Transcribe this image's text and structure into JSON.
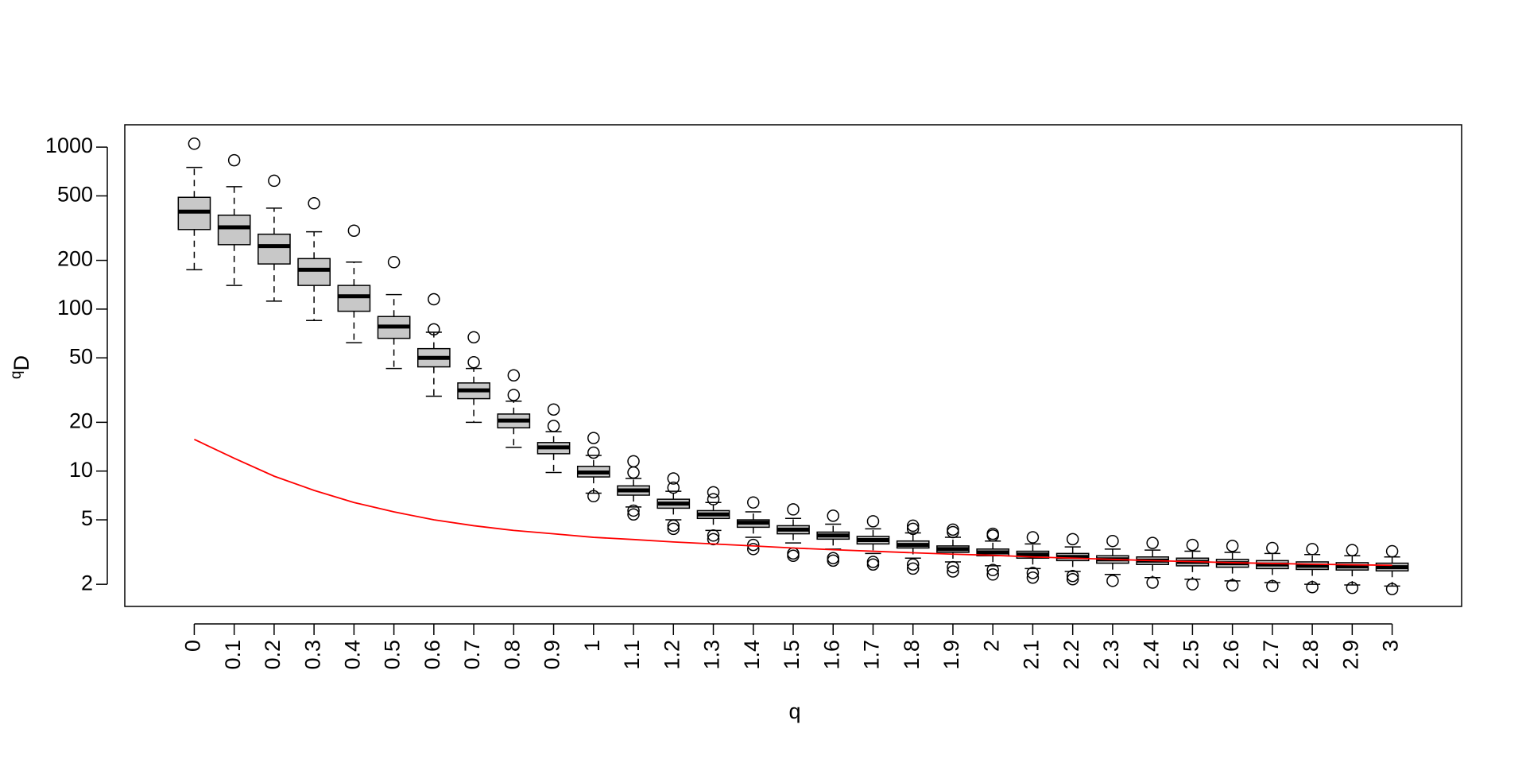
{
  "chart_data": {
    "type": "boxplot",
    "x_label": "q",
    "y_label": "D",
    "y_label_superscript": "q",
    "log_y": true,
    "ylim": [
      1.46,
      1374
    ],
    "yticks": [
      2,
      5,
      10,
      20,
      50,
      100,
      200,
      500,
      1000
    ],
    "box_color": "#c8c8c8",
    "line_color": "#ff0000",
    "categories": [
      "0",
      "0.1",
      "0.2",
      "0.3",
      "0.4",
      "0.5",
      "0.6",
      "0.7",
      "0.8",
      "0.9",
      "1",
      "1.1",
      "1.2",
      "1.3",
      "1.4",
      "1.5",
      "1.6",
      "1.7",
      "1.8",
      "1.9",
      "2",
      "2.1",
      "2.2",
      "2.3",
      "2.4",
      "2.5",
      "2.6",
      "2.7",
      "2.8",
      "2.9",
      "3"
    ],
    "boxes": [
      {
        "whislo": 175,
        "q1": 310,
        "med": 400,
        "q3": 490,
        "whishi": 750,
        "fliers": [
          1050
        ]
      },
      {
        "whislo": 140,
        "q1": 250,
        "med": 320,
        "q3": 380,
        "whishi": 570,
        "fliers": [
          830
        ]
      },
      {
        "whislo": 112,
        "q1": 190,
        "med": 245,
        "q3": 290,
        "whishi": 420,
        "fliers": [
          620
        ]
      },
      {
        "whislo": 85,
        "q1": 140,
        "med": 175,
        "q3": 205,
        "whishi": 300,
        "fliers": [
          450
        ]
      },
      {
        "whislo": 62,
        "q1": 97,
        "med": 120,
        "q3": 140,
        "whishi": 195,
        "fliers": [
          305
        ]
      },
      {
        "whislo": 43,
        "q1": 66,
        "med": 78,
        "q3": 90,
        "whishi": 123,
        "fliers": [
          195
        ]
      },
      {
        "whislo": 29,
        "q1": 44,
        "med": 50,
        "q3": 57,
        "whishi": 72,
        "fliers": [
          75,
          115
        ]
      },
      {
        "whislo": 20,
        "q1": 28,
        "med": 31.5,
        "q3": 35,
        "whishi": 43,
        "fliers": [
          47,
          67
        ]
      },
      {
        "whislo": 14,
        "q1": 18.5,
        "med": 20.5,
        "q3": 22.5,
        "whishi": 27,
        "fliers": [
          29.5,
          39
        ]
      },
      {
        "whislo": 9.8,
        "q1": 12.8,
        "med": 14,
        "q3": 15,
        "whishi": 17.5,
        "fliers": [
          19,
          24
        ]
      },
      {
        "whislo": 7.3,
        "q1": 9.2,
        "med": 9.8,
        "q3": 10.7,
        "whishi": 12.5,
        "fliers": [
          7.0,
          13,
          16
        ]
      },
      {
        "whislo": 6.0,
        "q1": 7.1,
        "med": 7.6,
        "q3": 8.1,
        "whishi": 9.0,
        "fliers": [
          5.4,
          5.7,
          9.8,
          11.5
        ]
      },
      {
        "whislo": 5.0,
        "q1": 5.9,
        "med": 6.3,
        "q3": 6.7,
        "whishi": 7.5,
        "fliers": [
          4.4,
          4.6,
          7.9,
          9.0
        ]
      },
      {
        "whislo": 4.3,
        "q1": 5.1,
        "med": 5.4,
        "q3": 5.7,
        "whishi": 6.4,
        "fliers": [
          3.8,
          4.0,
          6.7,
          7.4
        ]
      },
      {
        "whislo": 3.9,
        "q1": 4.5,
        "med": 4.8,
        "q3": 5.0,
        "whishi": 5.6,
        "fliers": [
          3.3,
          3.5,
          6.4
        ]
      },
      {
        "whislo": 3.6,
        "q1": 4.1,
        "med": 4.35,
        "q3": 4.6,
        "whishi": 5.1,
        "fliers": [
          3.0,
          3.1,
          5.8
        ]
      },
      {
        "whislo": 3.3,
        "q1": 3.8,
        "med": 4.0,
        "q3": 4.2,
        "whishi": 4.7,
        "fliers": [
          2.8,
          2.9,
          5.3
        ]
      },
      {
        "whislo": 3.1,
        "q1": 3.55,
        "med": 3.75,
        "q3": 3.95,
        "whishi": 4.4,
        "fliers": [
          2.65,
          2.75,
          4.9
        ]
      },
      {
        "whislo": 2.9,
        "q1": 3.35,
        "med": 3.5,
        "q3": 3.7,
        "whishi": 4.15,
        "fliers": [
          2.5,
          2.65,
          4.4,
          4.6
        ]
      },
      {
        "whislo": 2.75,
        "q1": 3.15,
        "med": 3.3,
        "q3": 3.45,
        "whishi": 3.9,
        "fliers": [
          2.4,
          2.55,
          4.2,
          4.35
        ]
      },
      {
        "whislo": 2.6,
        "q1": 3.0,
        "med": 3.15,
        "q3": 3.3,
        "whishi": 3.7,
        "fliers": [
          2.3,
          2.45,
          4.0,
          4.1
        ]
      },
      {
        "whislo": 2.5,
        "q1": 2.9,
        "med": 3.05,
        "q3": 3.2,
        "whishi": 3.55,
        "fliers": [
          2.2,
          2.35,
          3.9
        ]
      },
      {
        "whislo": 2.4,
        "q1": 2.8,
        "med": 2.95,
        "q3": 3.1,
        "whishi": 3.4,
        "fliers": [
          2.15,
          2.25,
          3.8
        ]
      },
      {
        "whislo": 2.3,
        "q1": 2.7,
        "med": 2.85,
        "q3": 3.0,
        "whishi": 3.3,
        "fliers": [
          2.1,
          3.7
        ]
      },
      {
        "whislo": 2.2,
        "q1": 2.65,
        "med": 2.8,
        "q3": 2.95,
        "whishi": 3.25,
        "fliers": [
          2.05,
          3.6
        ]
      },
      {
        "whislo": 2.15,
        "q1": 2.6,
        "med": 2.75,
        "q3": 2.9,
        "whishi": 3.2,
        "fliers": [
          2.0,
          3.5
        ]
      },
      {
        "whislo": 2.1,
        "q1": 2.55,
        "med": 2.7,
        "q3": 2.85,
        "whishi": 3.15,
        "fliers": [
          1.97,
          3.45
        ]
      },
      {
        "whislo": 2.05,
        "q1": 2.5,
        "med": 2.65,
        "q3": 2.8,
        "whishi": 3.1,
        "fliers": [
          1.95,
          3.35
        ]
      },
      {
        "whislo": 2.0,
        "q1": 2.47,
        "med": 2.6,
        "q3": 2.75,
        "whishi": 3.05,
        "fliers": [
          1.92,
          3.3
        ]
      },
      {
        "whislo": 1.98,
        "q1": 2.45,
        "med": 2.58,
        "q3": 2.72,
        "whishi": 3.0,
        "fliers": [
          1.9,
          3.25
        ]
      },
      {
        "whislo": 1.95,
        "q1": 2.42,
        "med": 2.55,
        "q3": 2.7,
        "whishi": 2.95,
        "fliers": [
          1.87,
          3.2
        ]
      }
    ],
    "line": {
      "values": [
        15.7,
        12,
        9.3,
        7.6,
        6.4,
        5.6,
        5.0,
        4.6,
        4.3,
        4.1,
        3.9,
        3.78,
        3.65,
        3.55,
        3.45,
        3.35,
        3.27,
        3.2,
        3.13,
        3.07,
        3.02,
        2.95,
        2.9,
        2.85,
        2.8,
        2.76,
        2.72,
        2.69,
        2.66,
        2.64,
        2.62
      ]
    }
  }
}
